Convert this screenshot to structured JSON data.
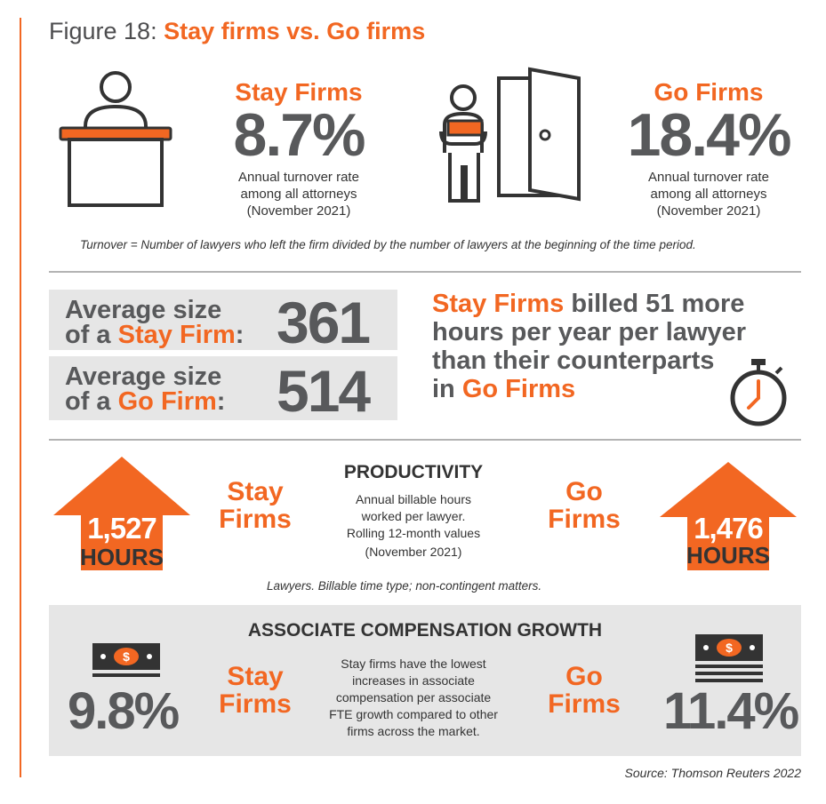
{
  "figure": {
    "number": "Figure 18:",
    "subtitle": "Stay firms vs. Go firms"
  },
  "stay": {
    "heading": "Stay Firms",
    "turnover": "8.7%",
    "desc_line1": "Annual turnover rate",
    "desc_line2": "among all attorneys",
    "desc_line3": "(November 2021)"
  },
  "go": {
    "heading": "Go Firms",
    "turnover": "18.4%",
    "desc_line1": "Annual turnover rate",
    "desc_line2": "among all attorneys",
    "desc_line3": "(November 2021)"
  },
  "turnover_note": "Turnover = Number of lawyers who left the firm divided by the number of lawyers at the beginning of the time period.",
  "size": {
    "stay_label_line1": "Average size",
    "stay_label_prefix": "of a ",
    "stay_label_firm": "Stay Firm",
    "stay_label_suffix": ":",
    "stay_value": "361",
    "go_label_line1": "Average size",
    "go_label_prefix": "of a ",
    "go_label_firm": "Go Firm",
    "go_label_suffix": ":",
    "go_value": "514"
  },
  "billed": {
    "firm1": "Stay Firms",
    "text1": " billed 51 more",
    "line2": "hours per year per lawyer",
    "line3": "than their counterparts",
    "prefix4": "in ",
    "firm2": "Go Firms"
  },
  "productivity": {
    "heading": "PRODUCTIVITY",
    "desc_line1": "Annual billable hours",
    "desc_line2": "worked per lawyer.",
    "desc_line3": "Rolling 12-month values",
    "desc_line4": "(November 2021)",
    "stay_value": "1,527",
    "stay_unit": "HOURS",
    "go_value": "1,476",
    "go_unit": "HOURS",
    "stay_label1": "Stay",
    "stay_label2": "Firms",
    "go_label1": "Go",
    "go_label2": "Firms",
    "note": "Lawyers. Billable time type; non-contingent matters."
  },
  "compensation": {
    "heading": "ASSOCIATE COMPENSATION GROWTH",
    "stay_value": "9.8%",
    "go_value": "11.4%",
    "stay_label1": "Stay",
    "stay_label2": "Firms",
    "go_label1": "Go",
    "go_label2": "Firms",
    "desc_line1": "Stay firms have the lowest",
    "desc_line2": "increases in associate",
    "desc_line3": "compensation per associate",
    "desc_line4": "FTE growth compared to other",
    "desc_line5": "firms across the market.",
    "money_symbol": "$"
  },
  "source": "Source: Thomson Reuters 2022",
  "colors": {
    "accent": "#f26722",
    "dark_gray": "#58595b",
    "light_gray": "#e6e6e6",
    "rule_gray": "#b3b3b3"
  },
  "icons": [
    "desk-person-icon",
    "person-carrying-box-icon",
    "open-door-icon",
    "stopwatch-icon",
    "up-arrow-icon",
    "money-bill-icon",
    "money-stack-icon"
  ]
}
